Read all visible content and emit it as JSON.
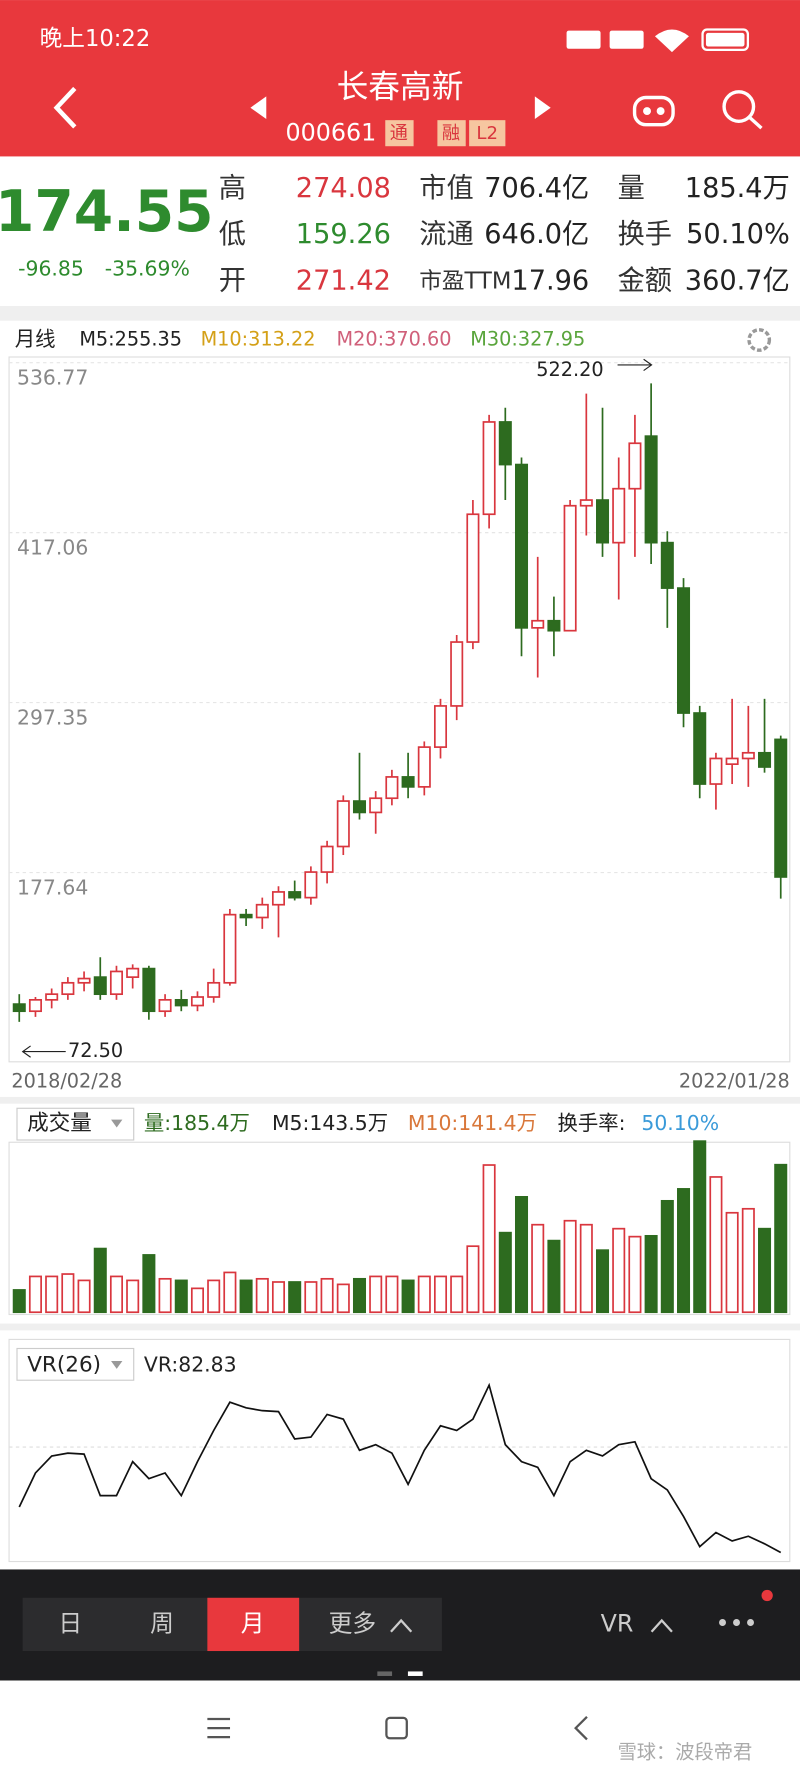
{
  "status": {
    "time": "晚上10:22"
  },
  "header": {
    "title": "长春高新",
    "code": "000661",
    "badges": [
      "通",
      "融",
      "L2"
    ]
  },
  "quote": {
    "price": "174.55",
    "change": "-96.85",
    "change_pct": "-35.69%",
    "stats": [
      [
        {
          "label": "高",
          "value": "274.08"
        },
        {
          "label": "市值",
          "value": "706.4亿"
        },
        {
          "label": "量",
          "value": "185.4万"
        }
      ],
      [
        {
          "label": "低",
          "value": "159.26"
        },
        {
          "label": "流通",
          "value": "646.0亿"
        },
        {
          "label": "换手",
          "value": "50.10%"
        }
      ],
      [
        {
          "label": "开",
          "value": "271.42"
        },
        {
          "label": "市盈TTM",
          "value": "17.96"
        },
        {
          "label": "金额",
          "value": "360.7亿"
        }
      ]
    ]
  },
  "kline": {
    "period": "月线",
    "ma": [
      "M5:255.35",
      "M10:313.22",
      "M20:370.60",
      "M30:327.95"
    ],
    "ylim": [
      57.93,
      536.77
    ],
    "yticks": [
      536.77,
      417.06,
      297.35,
      177.64
    ],
    "high_label": "522.20",
    "low_label": "72.50",
    "start_date": "2018/02/28",
    "end_date": "2022/01/28",
    "candles": [
      [
        85,
        92,
        72.5,
        80
      ],
      [
        80,
        90,
        76,
        88
      ],
      [
        88,
        96,
        82,
        92
      ],
      [
        92,
        104,
        88,
        100
      ],
      [
        100,
        108,
        94,
        103
      ],
      [
        104,
        118,
        88,
        92
      ],
      [
        92,
        112,
        88,
        108
      ],
      [
        104,
        113,
        96,
        110
      ],
      [
        110,
        112,
        74,
        80
      ],
      [
        80,
        92,
        76,
        88
      ],
      [
        88,
        95,
        80,
        84
      ],
      [
        84,
        94,
        80,
        90
      ],
      [
        90,
        110,
        86,
        100
      ],
      [
        100,
        152,
        98,
        148
      ],
      [
        148,
        152,
        140,
        146
      ],
      [
        146,
        160,
        138,
        155
      ],
      [
        155,
        168,
        132,
        164
      ],
      [
        164,
        172,
        158,
        160
      ],
      [
        160,
        182,
        155,
        178
      ],
      [
        178,
        200,
        170,
        196
      ],
      [
        196,
        232,
        190,
        228
      ],
      [
        228,
        262,
        215,
        220
      ],
      [
        220,
        235,
        205,
        230
      ],
      [
        230,
        250,
        225,
        245
      ],
      [
        245,
        262,
        230,
        238
      ],
      [
        238,
        270,
        232,
        266
      ],
      [
        266,
        300,
        258,
        295
      ],
      [
        295,
        345,
        285,
        340
      ],
      [
        340,
        440,
        335,
        430
      ],
      [
        430,
        500,
        420,
        495
      ],
      [
        495,
        505,
        440,
        465
      ],
      [
        465,
        470,
        330,
        350
      ],
      [
        350,
        400,
        315,
        355
      ],
      [
        355,
        372,
        330,
        348
      ],
      [
        348,
        440,
        348,
        436
      ],
      [
        436,
        515,
        415,
        440
      ],
      [
        440,
        505,
        400,
        410
      ],
      [
        410,
        470,
        370,
        448
      ],
      [
        448,
        500,
        400,
        480
      ],
      [
        485,
        522.2,
        395,
        410
      ],
      [
        410,
        418,
        350,
        378
      ],
      [
        378,
        385,
        280,
        290
      ],
      [
        290,
        295,
        230,
        240
      ],
      [
        240,
        262,
        222,
        258
      ],
      [
        254,
        300,
        240,
        258
      ],
      [
        258,
        295,
        238,
        262
      ],
      [
        262,
        300,
        248,
        252
      ],
      [
        271.42,
        274.08,
        159.26,
        174.55
      ]
    ]
  },
  "volume": {
    "title": "成交量",
    "vol": "量:185.4万",
    "m5": "M5:143.5万",
    "m10": "M10:141.4万",
    "turnover_label": "换手率:",
    "turnover": "50.10%",
    "ylim": [
      0,
      225
    ],
    "values": [
      28,
      45,
      45,
      48,
      40,
      80,
      45,
      40,
      72,
      42,
      40,
      30,
      40,
      50,
      40,
      42,
      38,
      38,
      38,
      42,
      35,
      42,
      45,
      45,
      40,
      45,
      45,
      45,
      83,
      185,
      100,
      145,
      110,
      90,
      115,
      110,
      78,
      105,
      95,
      96,
      140,
      155,
      215,
      170,
      125,
      130,
      105,
      185.4
    ]
  },
  "vr": {
    "title": "VR(26)",
    "value_label": "VR:82.83",
    "ylim": [
      70.83,
      298.83
    ],
    "values": [
      131,
      167,
      185,
      188,
      187,
      143,
      143,
      179,
      161,
      167,
      143,
      179,
      212,
      242,
      236,
      233,
      232,
      203,
      205,
      229,
      224,
      191,
      197,
      188,
      155,
      191,
      217,
      212,
      224,
      260,
      197,
      179,
      173,
      143,
      179,
      191,
      185,
      197,
      200,
      161,
      149,
      121,
      89,
      104,
      95,
      100,
      92,
      82.83
    ]
  },
  "tabs": [
    "日",
    "周",
    "月",
    "更多"
  ],
  "indicator_tab": "VR",
  "more": "•••",
  "watermark": "雪球：波段帝君"
}
